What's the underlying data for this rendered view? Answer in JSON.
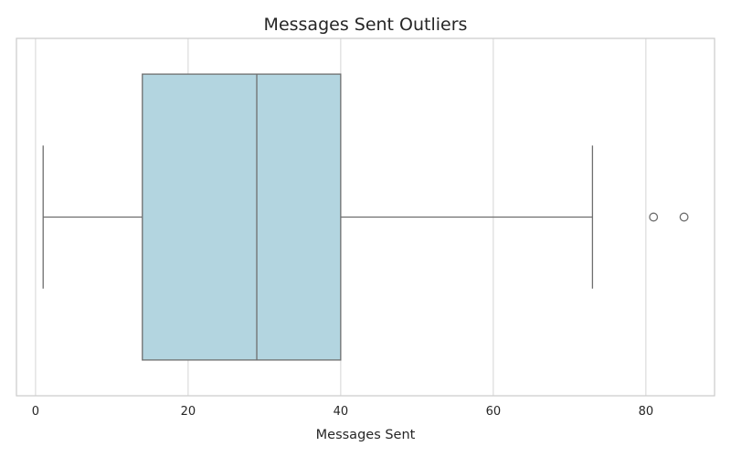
{
  "chart_data": {
    "type": "box",
    "title": "Messages Sent Outliers",
    "xlabel": "Messages Sent",
    "ylabel": "",
    "orientation": "horizontal",
    "xlim": [
      -2.5,
      89
    ],
    "x_ticks": [
      0,
      20,
      40,
      60,
      80
    ],
    "grid": true,
    "series": [
      {
        "min": 1,
        "q1": 14,
        "median": 29,
        "q3": 40,
        "max": 73,
        "outliers": [
          81,
          85
        ]
      }
    ]
  },
  "colors": {
    "box_fill": "#b3d5e0",
    "box_stroke": "#6e6e6e",
    "grid": "#d9d9d9",
    "frame": "#cccccc",
    "text": "#262626"
  }
}
